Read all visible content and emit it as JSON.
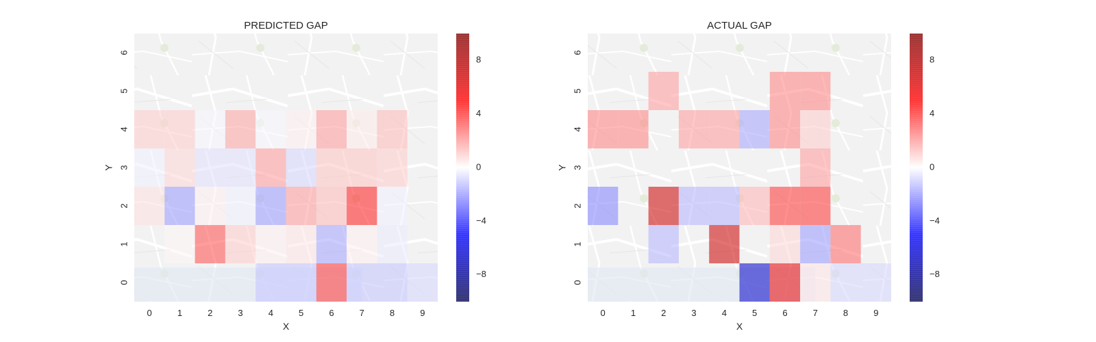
{
  "chart_data": [
    {
      "type": "heatmap",
      "title": "PREDICTED GAP",
      "xlabel": "X",
      "ylabel": "Y",
      "x_categories": [
        "0",
        "1",
        "2",
        "3",
        "4",
        "5",
        "6",
        "7",
        "8",
        "9"
      ],
      "y_categories": [
        "0",
        "1",
        "2",
        "3",
        "4",
        "5",
        "6"
      ],
      "values": [
        [
          null,
          null,
          null,
          null,
          -1.2,
          -1.2,
          4.0,
          -1.2,
          -1.2,
          -0.8
        ],
        [
          null,
          0.2,
          3.5,
          1.0,
          0.3,
          0.5,
          -1.8,
          0.3,
          -0.4,
          null
        ],
        [
          0.6,
          -2.0,
          0.3,
          -0.3,
          -2.0,
          2.0,
          1.4,
          4.5,
          -0.3,
          null
        ],
        [
          -0.3,
          0.8,
          -0.6,
          -0.6,
          2.0,
          -0.8,
          1.2,
          1.2,
          1.0,
          null
        ],
        [
          1.0,
          1.0,
          -0.2,
          1.8,
          -0.2,
          0.3,
          2.0,
          0.4,
          1.4,
          null
        ],
        [
          null,
          null,
          null,
          null,
          null,
          null,
          null,
          null,
          null,
          null
        ],
        [
          null,
          null,
          null,
          null,
          null,
          null,
          null,
          null,
          null,
          null
        ]
      ],
      "colorbar": {
        "min": -10,
        "max": 10,
        "ticks": [
          -8,
          -4,
          0,
          4,
          8
        ],
        "colormap": "seismic"
      }
    },
    {
      "type": "heatmap",
      "title": "ACTUAL GAP",
      "xlabel": "X",
      "ylabel": "Y",
      "x_categories": [
        "0",
        "1",
        "2",
        "3",
        "4",
        "5",
        "6",
        "7",
        "8",
        "9"
      ],
      "y_categories": [
        "0",
        "1",
        "2",
        "3",
        "4",
        "5",
        "6"
      ],
      "values": [
        [
          null,
          null,
          null,
          null,
          null,
          -6.5,
          6.0,
          0.5,
          -0.8,
          -0.8
        ],
        [
          null,
          null,
          -1.5,
          null,
          7.0,
          null,
          0.8,
          -2.0,
          3.0,
          null
        ],
        [
          -2.5,
          null,
          7.0,
          -1.5,
          -1.5,
          1.5,
          4.0,
          4.0,
          null,
          null
        ],
        [
          null,
          null,
          null,
          null,
          null,
          null,
          null,
          2.0,
          null,
          null
        ],
        [
          2.5,
          2.5,
          null,
          2.0,
          2.0,
          -1.8,
          2.5,
          1.0,
          null,
          null
        ],
        [
          null,
          null,
          2.0,
          null,
          null,
          null,
          2.5,
          2.5,
          null,
          null
        ],
        [
          null,
          null,
          null,
          null,
          null,
          null,
          null,
          null,
          null,
          null
        ]
      ],
      "colorbar": {
        "min": -10,
        "max": 10,
        "ticks": [
          -8,
          -4,
          0,
          4,
          8
        ],
        "colormap": "seismic"
      }
    }
  ]
}
